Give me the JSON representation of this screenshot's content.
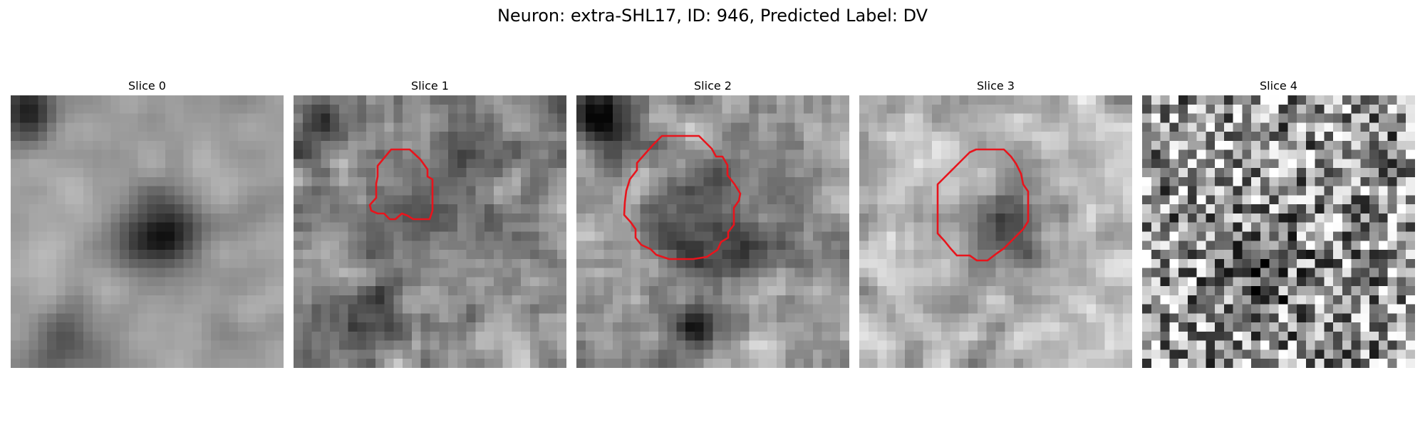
{
  "figure": {
    "title": "Neuron: extra-SHL17, ID: 946, Predicted Label: DV"
  },
  "contour_color": "#e8141c",
  "slices": [
    {
      "label": "Slice 0",
      "has_contour": false
    },
    {
      "label": "Slice 1",
      "has_contour": true
    },
    {
      "label": "Slice 2",
      "has_contour": true
    },
    {
      "label": "Slice 3",
      "has_contour": true
    },
    {
      "label": "Slice 4",
      "has_contour": false
    }
  ]
}
